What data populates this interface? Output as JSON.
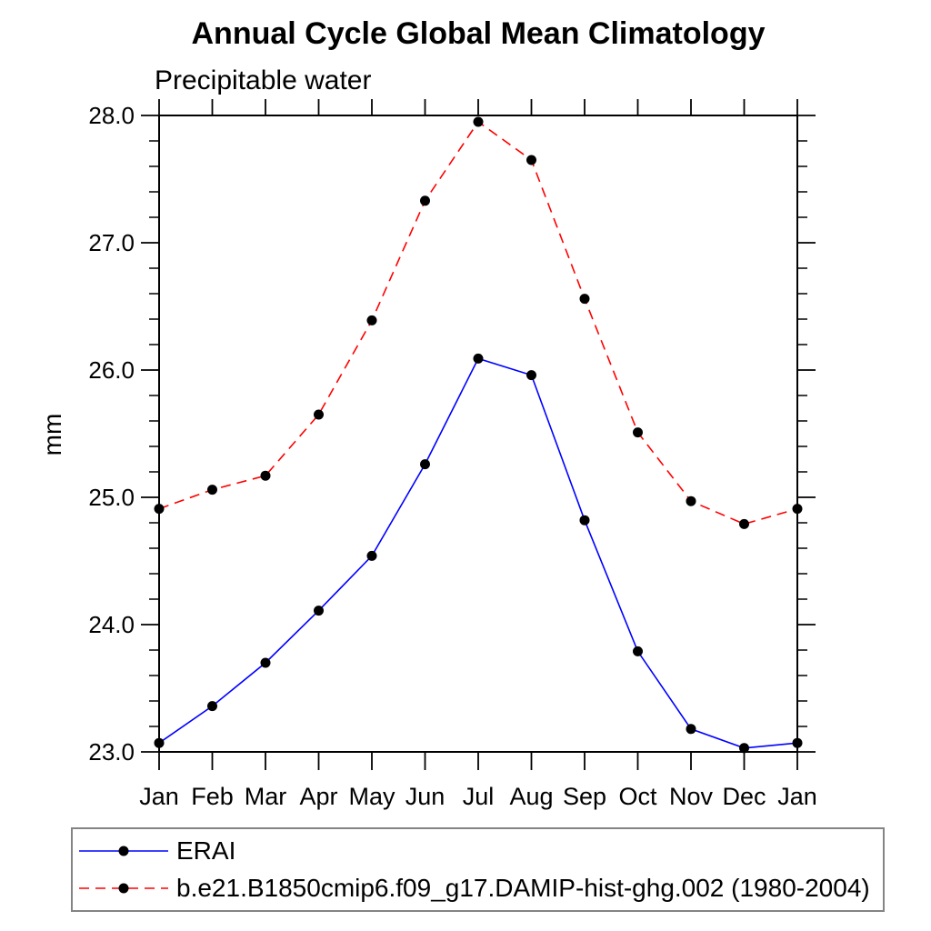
{
  "chart_data": {
    "type": "line",
    "title": "Annual Cycle Global Mean Climatology",
    "subtitle": "Precipitable water",
    "ylabel": "mm",
    "xlabel": "",
    "x_tick_labels": [
      "Jan",
      "Feb",
      "Mar",
      "Apr",
      "May",
      "Jun",
      "Jul",
      "Aug",
      "Sep",
      "Oct",
      "Nov",
      "Dec",
      "Jan"
    ],
    "ylim": [
      23.0,
      28.0
    ],
    "y_ticks": [
      23.0,
      24.0,
      25.0,
      26.0,
      27.0,
      28.0
    ],
    "y_tick_labels": [
      "23.0",
      "24.0",
      "25.0",
      "26.0",
      "27.0",
      "28.0"
    ],
    "y_minor_step": 0.2,
    "grid": false,
    "legend_position": "bottom",
    "frame_color": "#000000",
    "series": [
      {
        "name": "ERAI",
        "color": "#0000ff",
        "line_style": "solid",
        "marker": "circle",
        "marker_color": "#000000",
        "values": [
          23.07,
          23.36,
          23.7,
          24.11,
          24.54,
          25.26,
          26.09,
          25.96,
          24.82,
          23.79,
          23.18,
          23.03,
          23.07
        ]
      },
      {
        "name": "b.e21.B1850cmip6.f09_g17.DAMIP-hist-ghg.002 (1980-2004)",
        "color": "#ff0000",
        "line_style": "dashed",
        "marker": "circle",
        "marker_color": "#000000",
        "values": [
          24.91,
          25.06,
          25.17,
          25.65,
          26.39,
          27.33,
          27.95,
          27.65,
          26.56,
          25.51,
          24.97,
          24.79,
          24.91
        ]
      }
    ]
  }
}
